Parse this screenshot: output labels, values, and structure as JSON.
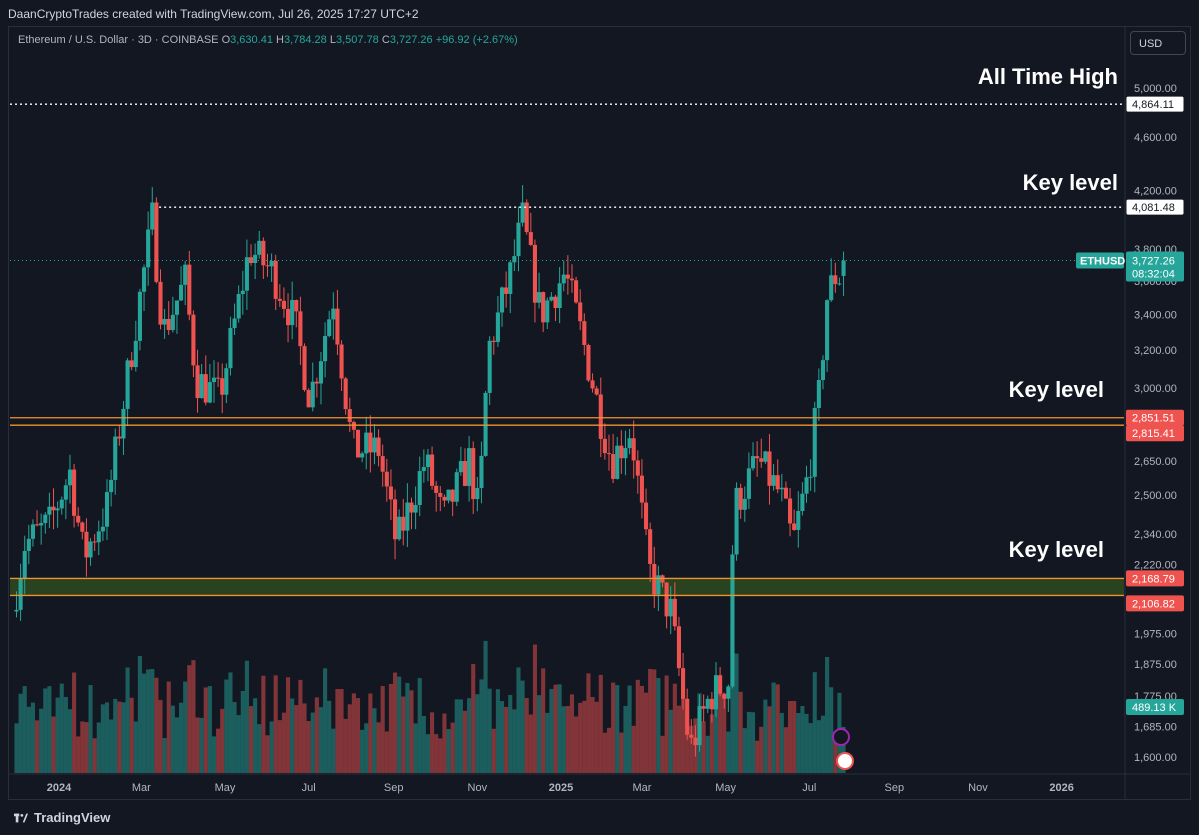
{
  "header": {
    "credit": "DaanCryptoTrades created with TradingView.com, Jul 26, 2025 17:27 UTC+2"
  },
  "legend": {
    "symbol": "Ethereum / U.S. Dollar · 3D · COINBASE",
    "o_label": "O",
    "o": "3,630.41",
    "h_label": "H",
    "h": "3,784.28",
    "l_label": "L",
    "l": "3,507.78",
    "c_label": "C",
    "c": "3,727.26",
    "change": "+96.92 (+2.67%)"
  },
  "currency_button": "USD",
  "footer": {
    "brand": "TradingView"
  },
  "colors": {
    "background": "#131722",
    "up": "#26a69a",
    "down": "#ef5350",
    "level_line": "#f0932b",
    "zone_fill": "#2e4a1f"
  },
  "chart_data": {
    "type": "candlestick",
    "title": "Ethereum / U.S. Dollar",
    "scale": "log",
    "ylim": [
      1560,
      5600
    ],
    "y_ticks": [
      "5,000.00",
      "4,600.00",
      "4,200.00",
      "3,800.00",
      "3,600.00",
      "3,400.00",
      "3,200.00",
      "3,000.00",
      "2,650.00",
      "2,500.00",
      "2,340.00",
      "2,220.00",
      "1,975.00",
      "1,875.00",
      "1,775.00",
      "1,685.00",
      "1,600.00"
    ],
    "x_ticks": [
      "2024",
      "Mar",
      "May",
      "Jul",
      "Sep",
      "Nov",
      "2025",
      "Mar",
      "May",
      "Jul",
      "Sep",
      "Nov",
      "2026"
    ],
    "annotations": [
      {
        "text": "All Time High",
        "price": 4864.11,
        "price_label": "4,864.11",
        "style": "dotted-white"
      },
      {
        "text": "Key level",
        "price": 4081.48,
        "price_label": "4,081.48",
        "style": "dotted-white"
      },
      {
        "text": "Key level",
        "zone": [
          2815.41,
          2851.51
        ],
        "price_labels": [
          "2,851.51",
          "2,815.41"
        ],
        "style": "orange-zone"
      },
      {
        "text": "Key level",
        "zone": [
          2106.82,
          2168.79
        ],
        "price_labels": [
          "2,168.79",
          "2,106.82"
        ],
        "style": "orange-zone-filled"
      }
    ],
    "last_price": {
      "symbol": "ETHUSD",
      "value": 3727.26,
      "label": "3,727.26",
      "countdown": "08:32:04"
    },
    "volume_label": "489.13 K",
    "anchors": [
      {
        "d": "2023-12-01",
        "p": 2050
      },
      {
        "d": "2023-12-10",
        "p": 2300
      },
      {
        "d": "2023-12-28",
        "p": 2380
      },
      {
        "d": "2024-01-12",
        "p": 2600
      },
      {
        "d": "2024-01-22",
        "p": 2250
      },
      {
        "d": "2024-02-08",
        "p": 2450
      },
      {
        "d": "2024-02-28",
        "p": 3300
      },
      {
        "d": "2024-03-12",
        "p": 4000
      },
      {
        "d": "2024-03-20",
        "p": 3300
      },
      {
        "d": "2024-04-05",
        "p": 3600
      },
      {
        "d": "2024-04-13",
        "p": 3050
      },
      {
        "d": "2024-04-30",
        "p": 2950
      },
      {
        "d": "2024-05-22",
        "p": 3800
      },
      {
        "d": "2024-06-08",
        "p": 3650
      },
      {
        "d": "2024-06-24",
        "p": 3350
      },
      {
        "d": "2024-07-05",
        "p": 2950
      },
      {
        "d": "2024-07-22",
        "p": 3500
      },
      {
        "d": "2024-08-05",
        "p": 2700
      },
      {
        "d": "2024-08-24",
        "p": 2700
      },
      {
        "d": "2024-09-06",
        "p": 2300
      },
      {
        "d": "2024-09-27",
        "p": 2650
      },
      {
        "d": "2024-10-10",
        "p": 2400
      },
      {
        "d": "2024-10-29",
        "p": 2650
      },
      {
        "d": "2024-11-05",
        "p": 2420
      },
      {
        "d": "2024-11-12",
        "p": 3200
      },
      {
        "d": "2024-11-27",
        "p": 3600
      },
      {
        "d": "2024-12-07",
        "p": 4000
      },
      {
        "d": "2024-12-20",
        "p": 3400
      },
      {
        "d": "2025-01-07",
        "p": 3650
      },
      {
        "d": "2025-01-20",
        "p": 3250
      },
      {
        "d": "2025-02-02",
        "p": 2850
      },
      {
        "d": "2025-02-10",
        "p": 2650
      },
      {
        "d": "2025-02-24",
        "p": 2800
      },
      {
        "d": "2025-03-09",
        "p": 2200
      },
      {
        "d": "2025-03-25",
        "p": 2050
      },
      {
        "d": "2025-04-08",
        "p": 1620
      },
      {
        "d": "2025-04-23",
        "p": 1780
      },
      {
        "d": "2025-05-06",
        "p": 1820
      },
      {
        "d": "2025-05-10",
        "p": 2450
      },
      {
        "d": "2025-05-28",
        "p": 2650
      },
      {
        "d": "2025-06-13",
        "p": 2500
      },
      {
        "d": "2025-06-22",
        "p": 2300
      },
      {
        "d": "2025-07-03",
        "p": 2580
      },
      {
        "d": "2025-07-11",
        "p": 2950
      },
      {
        "d": "2025-07-17",
        "p": 3500
      },
      {
        "d": "2025-07-23",
        "p": 3630
      }
    ],
    "last_candle": {
      "date": "2025-07-26",
      "open": 3630.41,
      "high": 3784.28,
      "low": 3507.78,
      "close": 3727.26
    }
  }
}
